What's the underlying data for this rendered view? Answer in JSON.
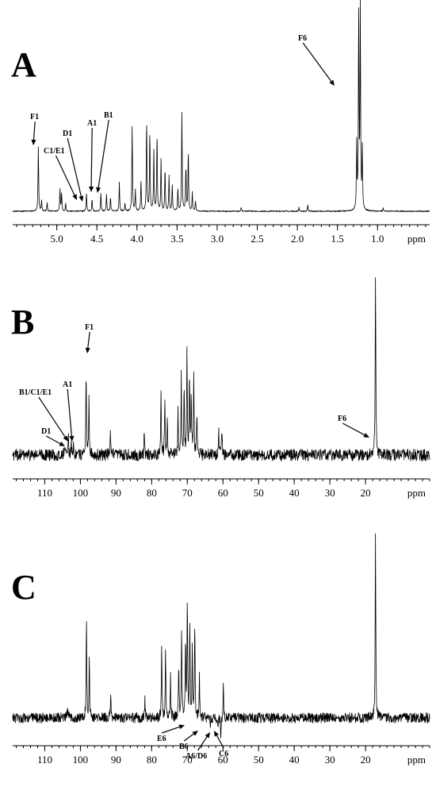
{
  "chart_data": [
    {
      "type": "line",
      "panel_label": "A",
      "xlabel": "ppm",
      "xlim": [
        5.55,
        0.35
      ],
      "x_ticks": [
        5.0,
        4.5,
        4.0,
        3.5,
        3.0,
        2.5,
        2.0,
        1.5,
        1.0
      ],
      "tick_labels": [
        "5.0",
        "4.5",
        "4.0",
        "3.5",
        "3.0",
        "2.5",
        "2.0",
        "1.5",
        "1.0"
      ],
      "noise": 0.003,
      "peaks": [
        {
          "x": 5.23,
          "h": 0.32
        },
        {
          "x": 5.19,
          "h": 0.05
        },
        {
          "x": 5.12,
          "h": 0.04
        },
        {
          "x": 4.96,
          "h": 0.11
        },
        {
          "x": 4.94,
          "h": 0.09
        },
        {
          "x": 4.89,
          "h": 0.04
        },
        {
          "x": 4.63,
          "h": 0.09
        },
        {
          "x": 4.56,
          "h": 0.06
        },
        {
          "x": 4.45,
          "h": 0.09
        },
        {
          "x": 4.38,
          "h": 0.08
        },
        {
          "x": 4.33,
          "h": 0.07
        },
        {
          "x": 4.22,
          "h": 0.14
        },
        {
          "x": 4.15,
          "h": 0.04
        },
        {
          "x": 4.06,
          "h": 0.42
        },
        {
          "x": 4.02,
          "h": 0.1
        },
        {
          "x": 3.95,
          "h": 0.15
        },
        {
          "x": 3.88,
          "h": 0.45
        },
        {
          "x": 3.84,
          "h": 0.4
        },
        {
          "x": 3.79,
          "h": 0.3
        },
        {
          "x": 3.75,
          "h": 0.38
        },
        {
          "x": 3.7,
          "h": 0.25
        },
        {
          "x": 3.65,
          "h": 0.21
        },
        {
          "x": 3.6,
          "h": 0.17
        },
        {
          "x": 3.56,
          "h": 0.13
        },
        {
          "x": 3.49,
          "h": 0.11
        },
        {
          "x": 3.44,
          "h": 0.48
        },
        {
          "x": 3.39,
          "h": 0.22
        },
        {
          "x": 3.36,
          "h": 0.3
        },
        {
          "x": 3.31,
          "h": 0.09
        },
        {
          "x": 3.27,
          "h": 0.05
        },
        {
          "x": 2.7,
          "h": 0.02
        },
        {
          "x": 1.98,
          "h": 0.02
        },
        {
          "x": 1.87,
          "h": 0.03
        },
        {
          "x": 1.26,
          "h": 0.32
        },
        {
          "x": 1.235,
          "h": 0.98
        },
        {
          "x": 1.215,
          "h": 0.98
        },
        {
          "x": 1.19,
          "h": 0.3
        },
        {
          "x": 0.93,
          "h": 0.015
        }
      ],
      "annotations": [
        {
          "label": "F1",
          "x": 5.23
        },
        {
          "label": "C1/E1",
          "x": 4.61
        },
        {
          "label": "D1",
          "x": 4.56
        },
        {
          "label": "A1",
          "x": 4.46
        },
        {
          "label": "B1",
          "x": 4.39
        },
        {
          "label": "F6",
          "x": 1.24
        }
      ]
    },
    {
      "type": "line",
      "panel_label": "B",
      "xlabel": "ppm",
      "xlim": [
        119,
        2
      ],
      "x_ticks": [
        110,
        100,
        90,
        80,
        70,
        60,
        50,
        40,
        30,
        20
      ],
      "tick_labels": [
        "110",
        "100",
        "90",
        "80",
        "70",
        "60",
        "50",
        "40",
        "30",
        "20"
      ],
      "noise": 0.032,
      "peaks": [
        {
          "x": 104.5,
          "h": 0.06
        },
        {
          "x": 103.4,
          "h": 0.09
        },
        {
          "x": 102.6,
          "h": 0.08
        },
        {
          "x": 101.9,
          "h": 0.06
        },
        {
          "x": 98.4,
          "h": 0.48
        },
        {
          "x": 97.6,
          "h": 0.32
        },
        {
          "x": 91.6,
          "h": 0.12
        },
        {
          "x": 82.1,
          "h": 0.1
        },
        {
          "x": 77.4,
          "h": 0.34
        },
        {
          "x": 76.3,
          "h": 0.31
        },
        {
          "x": 75.6,
          "h": 0.21
        },
        {
          "x": 72.6,
          "h": 0.24
        },
        {
          "x": 71.7,
          "h": 0.42
        },
        {
          "x": 70.9,
          "h": 0.36
        },
        {
          "x": 70.1,
          "h": 0.56
        },
        {
          "x": 69.4,
          "h": 0.46
        },
        {
          "x": 68.9,
          "h": 0.34
        },
        {
          "x": 68.2,
          "h": 0.45
        },
        {
          "x": 67.3,
          "h": 0.22
        },
        {
          "x": 61.2,
          "h": 0.13
        },
        {
          "x": 60.3,
          "h": 0.15
        },
        {
          "x": 17.2,
          "h": 0.99
        }
      ],
      "annotations": [
        {
          "label": "F1",
          "x": 98.4
        },
        {
          "label": "B1/C1/E1",
          "x": 103.2
        },
        {
          "label": "A1",
          "x": 102.1
        },
        {
          "label": "D1",
          "x": 104.6
        },
        {
          "label": "F6",
          "x": 17.3
        }
      ]
    },
    {
      "type": "line",
      "panel_label": "C",
      "xlabel": "ppm",
      "xlim": [
        119,
        2
      ],
      "x_ticks": [
        110,
        100,
        90,
        80,
        70,
        60,
        50,
        40,
        30,
        20
      ],
      "tick_labels": [
        "110",
        "100",
        "90",
        "80",
        "70",
        "60",
        "50",
        "40",
        "30",
        "20"
      ],
      "noise": 0.028,
      "peaks": [
        {
          "x": 103.6,
          "h": 0.07
        },
        {
          "x": 98.3,
          "h": 0.55
        },
        {
          "x": 97.5,
          "h": 0.33
        },
        {
          "x": 91.5,
          "h": 0.14
        },
        {
          "x": 81.9,
          "h": 0.1
        },
        {
          "x": 77.2,
          "h": 0.42
        },
        {
          "x": 76.1,
          "h": 0.38
        },
        {
          "x": 74.7,
          "h": 0.22
        },
        {
          "x": 72.4,
          "h": 0.3
        },
        {
          "x": 71.6,
          "h": 0.5
        },
        {
          "x": 70.5,
          "h": 0.42
        },
        {
          "x": 70.0,
          "h": 0.65
        },
        {
          "x": 69.3,
          "h": 0.5
        },
        {
          "x": 68.6,
          "h": 0.36
        },
        {
          "x": 67.9,
          "h": 0.53
        },
        {
          "x": 66.6,
          "h": 0.22
        },
        {
          "x": 63.6,
          "h": -0.05
        },
        {
          "x": 61.4,
          "h": -0.07
        },
        {
          "x": 60.6,
          "h": -0.11
        },
        {
          "x": 59.9,
          "h": 0.18
        },
        {
          "x": 17.2,
          "h": 0.99
        }
      ],
      "annotations": [
        {
          "label": "E6",
          "x": 69.6
        },
        {
          "label": "B6",
          "x": 67.5
        },
        {
          "label": "A6/D6",
          "x": 61.6
        },
        {
          "label": "C6",
          "x": 60.6
        }
      ]
    }
  ]
}
